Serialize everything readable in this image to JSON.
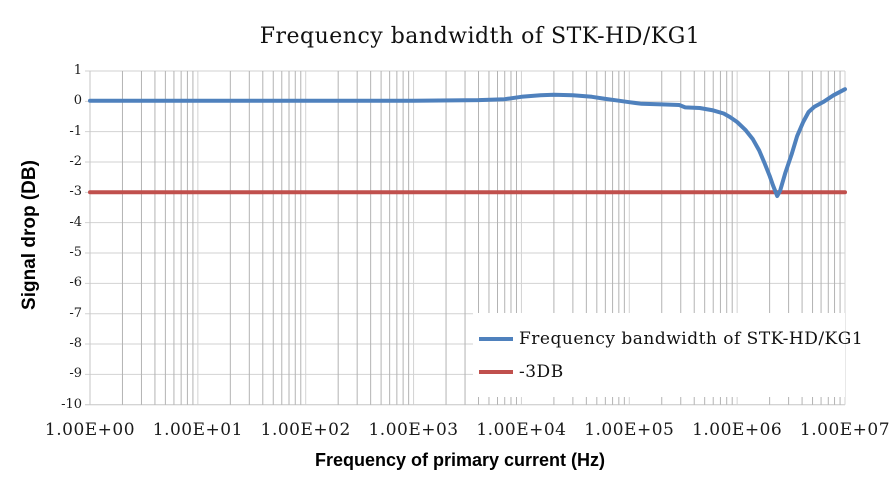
{
  "chart_data": {
    "type": "line",
    "title": "Frequency bandwidth of STK-HD/KG1",
    "xlabel": "Frequency of primary current (Hz)",
    "ylabel": "Signal drop (DB)",
    "x_scale": "log",
    "xlim": [
      1,
      10000000
    ],
    "ylim": [
      -10,
      1
    ],
    "x_tick_labels": [
      "1.00E+00",
      "1.00E+01",
      "1.00E+02",
      "1.00E+03",
      "1.00E+04",
      "1.00E+05",
      "1.00E+06",
      "1.00E+07"
    ],
    "y_tick_labels": [
      "1",
      "0",
      "-1",
      "-2",
      "-3",
      "-4",
      "-5",
      "-6",
      "-7",
      "-8",
      "-9",
      "-10"
    ],
    "grid": "horizontal major lines; vertical log major+minor lines",
    "legend_position": "inside bottom-right, white background, no border",
    "series": [
      {
        "name": "Frequency bandwidth of STK-HD/KG1",
        "color": "#4F81BD",
        "points": [
          [
            1,
            0.02
          ],
          [
            10,
            0.02
          ],
          [
            100,
            0.02
          ],
          [
            1000,
            0.02
          ],
          [
            4000,
            0.04
          ],
          [
            7000,
            0.07
          ],
          [
            10000,
            0.15
          ],
          [
            15000,
            0.2
          ],
          [
            20000,
            0.22
          ],
          [
            30000,
            0.2
          ],
          [
            45000,
            0.15
          ],
          [
            60000,
            0.08
          ],
          [
            80000,
            0.02
          ],
          [
            100000,
            -0.03
          ],
          [
            130000,
            -0.08
          ],
          [
            200000,
            -0.1
          ],
          [
            290000,
            -0.12
          ],
          [
            330000,
            -0.2
          ],
          [
            450000,
            -0.22
          ],
          [
            600000,
            -0.3
          ],
          [
            750000,
            -0.4
          ],
          [
            860000,
            -0.52
          ],
          [
            1000000,
            -0.68
          ],
          [
            1200000,
            -0.95
          ],
          [
            1400000,
            -1.25
          ],
          [
            1600000,
            -1.62
          ],
          [
            1800000,
            -2.05
          ],
          [
            2000000,
            -2.45
          ],
          [
            2150000,
            -2.77
          ],
          [
            2350000,
            -3.12
          ],
          [
            2500000,
            -2.95
          ],
          [
            2800000,
            -2.35
          ],
          [
            3200000,
            -1.75
          ],
          [
            3600000,
            -1.15
          ],
          [
            4100000,
            -0.68
          ],
          [
            4600000,
            -0.35
          ],
          [
            5200000,
            -0.18
          ],
          [
            6300000,
            -0.02
          ],
          [
            7800000,
            0.2
          ],
          [
            10000000,
            0.4
          ]
        ]
      },
      {
        "name": "-3DB",
        "color": "#C0504D",
        "points": [
          [
            1,
            -3
          ],
          [
            10000000,
            -3
          ]
        ]
      }
    ],
    "colors": {
      "series_blue": "#4F81BD",
      "series_red": "#C0504D",
      "grid_horizontal": "#d2d2d2",
      "grid_vertical_minor": "#b3b3b3",
      "grid_vertical_major": "#d2d2d2",
      "axis_line": "#c6c6c6",
      "text": "#1a1a1a"
    }
  }
}
